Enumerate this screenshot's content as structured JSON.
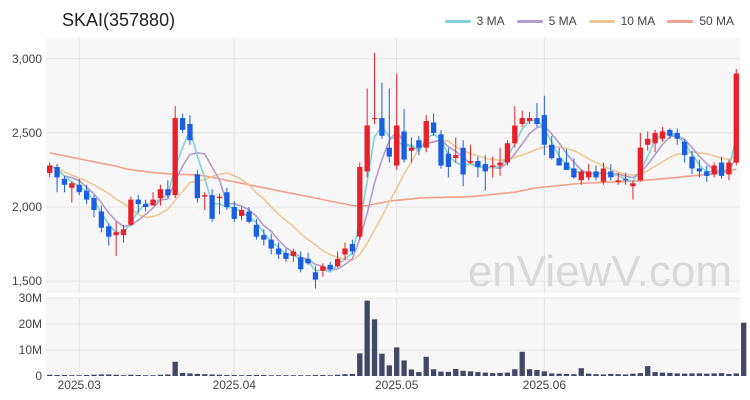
{
  "title": "SKAI(357880)",
  "watermark": "enViewV.com",
  "colors": {
    "up": "#e8202a",
    "down": "#1a5fe0",
    "ma3": "#7fd3d8",
    "ma5": "#b39ccc",
    "ma10": "#f0c694",
    "ma50": "#f2a08e",
    "volume": "#434766",
    "grid": "#e4e4e4",
    "plot_bg": "#f7f7f7"
  },
  "legend": [
    {
      "label": "3 MA",
      "color": "#7fd3d8"
    },
    {
      "label": "5 MA",
      "color": "#b39ccc"
    },
    {
      "label": "10 MA",
      "color": "#f0c694"
    },
    {
      "label": "50 MA",
      "color": "#f2a08e"
    }
  ],
  "chart_data": {
    "type": "candlestick",
    "price_axis": {
      "ylim": [
        1420,
        3140
      ],
      "ticks": [
        1500,
        2000,
        2500,
        3000
      ],
      "tick_labels": [
        "1,500",
        "2,000",
        "2,500",
        "3,000"
      ]
    },
    "volume_axis": {
      "ylim": [
        0,
        30000000
      ],
      "ticks": [
        0,
        10000000,
        20000000,
        30000000
      ],
      "tick_labels": [
        "0",
        "10M",
        "20M",
        "30M"
      ]
    },
    "x_ticks": [
      {
        "index": 4,
        "label": "2025.03"
      },
      {
        "index": 25,
        "label": "2025.04"
      },
      {
        "index": 47,
        "label": "2025.05"
      },
      {
        "index": 67,
        "label": "2025.06"
      }
    ],
    "ohlc": [
      [
        2230,
        2300,
        2200,
        2280
      ],
      [
        2270,
        2290,
        2100,
        2200
      ],
      [
        2190,
        2210,
        2100,
        2150
      ],
      [
        2130,
        2170,
        2030,
        2160
      ],
      [
        2150,
        2190,
        2080,
        2100
      ],
      [
        2110,
        2150,
        2020,
        2050
      ],
      [
        2060,
        2080,
        1930,
        1980
      ],
      [
        1970,
        2010,
        1830,
        1860
      ],
      [
        1870,
        1890,
        1740,
        1800
      ],
      [
        1810,
        1900,
        1670,
        1830
      ],
      [
        1810,
        1880,
        1760,
        1850
      ],
      [
        1880,
        2070,
        1870,
        2050
      ],
      [
        2050,
        2080,
        1960,
        2020
      ],
      [
        2020,
        2050,
        1970,
        2000
      ],
      [
        2010,
        2100,
        2010,
        2050
      ],
      [
        2060,
        2150,
        2010,
        2120
      ],
      [
        2120,
        2180,
        2060,
        2080
      ],
      [
        2080,
        2680,
        2060,
        2600
      ],
      [
        2600,
        2630,
        2500,
        2520
      ],
      [
        2560,
        2620,
        2420,
        2450
      ],
      [
        2220,
        2250,
        2030,
        2060
      ],
      [
        2070,
        2100,
        1980,
        2080
      ],
      [
        2080,
        2120,
        1900,
        1920
      ],
      [
        2060,
        2090,
        1950,
        2070
      ],
      [
        2100,
        2130,
        1980,
        2000
      ],
      [
        2000,
        2040,
        1900,
        1920
      ],
      [
        1940,
        2000,
        1910,
        1980
      ],
      [
        1970,
        2000,
        1890,
        1900
      ],
      [
        1880,
        1920,
        1780,
        1800
      ],
      [
        1810,
        1850,
        1740,
        1780
      ],
      [
        1780,
        1820,
        1680,
        1720
      ],
      [
        1720,
        1760,
        1650,
        1680
      ],
      [
        1690,
        1720,
        1630,
        1650
      ],
      [
        1670,
        1720,
        1630,
        1700
      ],
      [
        1660,
        1700,
        1560,
        1580
      ],
      [
        1650,
        1690,
        1610,
        1620
      ],
      [
        1560,
        1600,
        1450,
        1510
      ],
      [
        1570,
        1620,
        1530,
        1600
      ],
      [
        1610,
        1630,
        1570,
        1580
      ],
      [
        1600,
        1700,
        1590,
        1650
      ],
      [
        1680,
        1760,
        1640,
        1720
      ],
      [
        1750,
        1780,
        1680,
        1700
      ],
      [
        1800,
        2300,
        1780,
        2270
      ],
      [
        2240,
        2800,
        2200,
        2550
      ],
      [
        2600,
        3040,
        2560,
        2600
      ],
      [
        2600,
        2840,
        2460,
        2480
      ],
      [
        2400,
        2800,
        2300,
        2340
      ],
      [
        2280,
        2900,
        2250,
        2550
      ],
      [
        2510,
        2660,
        2300,
        2320
      ],
      [
        2380,
        2470,
        2300,
        2400
      ],
      [
        2450,
        2480,
        2350,
        2400
      ],
      [
        2400,
        2620,
        2370,
        2580
      ],
      [
        2570,
        2630,
        2480,
        2500
      ],
      [
        2490,
        2520,
        2260,
        2280
      ],
      [
        2360,
        2400,
        2200,
        2270
      ],
      [
        2330,
        2470,
        2300,
        2350
      ],
      [
        2400,
        2450,
        2140,
        2220
      ],
      [
        2300,
        2420,
        2290,
        2310
      ],
      [
        2310,
        2340,
        2200,
        2270
      ],
      [
        2290,
        2350,
        2110,
        2240
      ],
      [
        2270,
        2340,
        2200,
        2280
      ],
      [
        2280,
        2400,
        2210,
        2300
      ],
      [
        2300,
        2450,
        2280,
        2430
      ],
      [
        2430,
        2680,
        2400,
        2550
      ],
      [
        2560,
        2650,
        2540,
        2600
      ],
      [
        2580,
        2640,
        2560,
        2600
      ],
      [
        2600,
        2700,
        2540,
        2560
      ],
      [
        2620,
        2750,
        2350,
        2420
      ],
      [
        2420,
        2480,
        2320,
        2330
      ],
      [
        2330,
        2400,
        2280,
        2280
      ],
      [
        2300,
        2390,
        2250,
        2250
      ],
      [
        2260,
        2330,
        2190,
        2200
      ],
      [
        2180,
        2250,
        2150,
        2240
      ],
      [
        2200,
        2290,
        2180,
        2240
      ],
      [
        2240,
        2280,
        2180,
        2200
      ],
      [
        2170,
        2300,
        2150,
        2260
      ],
      [
        2240,
        2290,
        2180,
        2200
      ],
      [
        2170,
        2230,
        2150,
        2180
      ],
      [
        2190,
        2230,
        2150,
        2180
      ],
      [
        2140,
        2180,
        2050,
        2160
      ],
      [
        2180,
        2500,
        2170,
        2400
      ],
      [
        2420,
        2510,
        2380,
        2460
      ],
      [
        2430,
        2520,
        2370,
        2500
      ],
      [
        2460,
        2540,
        2440,
        2510
      ],
      [
        2520,
        2530,
        2460,
        2480
      ],
      [
        2500,
        2530,
        2420,
        2460
      ],
      [
        2440,
        2460,
        2300,
        2350
      ],
      [
        2340,
        2380,
        2220,
        2260
      ],
      [
        2260,
        2320,
        2200,
        2240
      ],
      [
        2240,
        2280,
        2170,
        2210
      ],
      [
        2220,
        2300,
        2200,
        2280
      ],
      [
        2300,
        2340,
        2190,
        2210
      ],
      [
        2220,
        2320,
        2180,
        2300
      ],
      [
        2300,
        2930,
        2280,
        2900
      ]
    ],
    "volume": [
      500000,
      400000,
      400000,
      300000,
      300000,
      400000,
      500000,
      600000,
      600000,
      500000,
      300000,
      500000,
      400000,
      300000,
      300000,
      500000,
      600000,
      5500000,
      1200000,
      1000000,
      800000,
      700000,
      600000,
      500000,
      400000,
      400000,
      300000,
      400000,
      400000,
      400000,
      300000,
      300000,
      300000,
      300000,
      300000,
      300000,
      400000,
      400000,
      300000,
      500000,
      700000,
      800000,
      8700000,
      29000000,
      21800000,
      8600000,
      4100000,
      11000000,
      6000000,
      2500000,
      1500000,
      7400000,
      2600000,
      1700000,
      1600000,
      2700000,
      2000000,
      1800000,
      1500000,
      1300000,
      1100000,
      1200000,
      1300000,
      2600000,
      9300000,
      2600000,
      2300000,
      1800000,
      1000000,
      900000,
      800000,
      700000,
      3000000,
      900000,
      700000,
      600000,
      800000,
      700000,
      600000,
      900000,
      1100000,
      3800000,
      1500000,
      1300000,
      1200000,
      1000000,
      900000,
      1000000,
      1000000,
      900000,
      1000000,
      1100000,
      800000,
      1000000,
      20500000
    ],
    "ma3": [
      2280,
      2250,
      2210,
      2170,
      2140,
      2103,
      2043,
      1963,
      1880,
      1830,
      1827,
      1893,
      1973,
      2023,
      2023,
      2057,
      2083,
      2267,
      2400,
      2523,
      2343,
      2197,
      2020,
      2023,
      1997,
      1997,
      1967,
      1933,
      1893,
      1827,
      1767,
      1727,
      1683,
      1677,
      1643,
      1633,
      1570,
      1577,
      1563,
      1610,
      1650,
      1690,
      1897,
      2173,
      2473,
      2543,
      2473,
      2457,
      2403,
      2423,
      2373,
      2460,
      2493,
      2453,
      2350,
      2300,
      2280,
      2293,
      2267,
      2273,
      2263,
      2273,
      2337,
      2427,
      2527,
      2583,
      2587,
      2527,
      2437,
      2343,
      2287,
      2243,
      2230,
      2227,
      2227,
      2233,
      2220,
      2213,
      2187,
      2173,
      2247,
      2340,
      2453,
      2490,
      2497,
      2483,
      2430,
      2357,
      2283,
      2237,
      2243,
      2233,
      2263,
      2470
    ],
    "ma5": [
      2280,
      2250,
      2210,
      2198,
      2178,
      2132,
      2088,
      2030,
      1958,
      1908,
      1868,
      1876,
      1911,
      1951,
      1995,
      2048,
      2054,
      2174,
      2276,
      2354,
      2366,
      2358,
      2270,
      2182,
      2024,
      2022,
      2006,
      1980,
      1938,
      1874,
      1836,
      1776,
      1726,
      1694,
      1662,
      1646,
      1612,
      1600,
      1572,
      1582,
      1612,
      1650,
      1784,
      1958,
      2162,
      2320,
      2446,
      2512,
      2436,
      2404,
      2394,
      2426,
      2440,
      2452,
      2406,
      2376,
      2334,
      2294,
      2274,
      2264,
      2268,
      2260,
      2300,
      2358,
      2426,
      2496,
      2536,
      2546,
      2494,
      2432,
      2360,
      2302,
      2250,
      2226,
      2224,
      2228,
      2224,
      2222,
      2208,
      2198,
      2234,
      2286,
      2354,
      2422,
      2474,
      2482,
      2454,
      2402,
      2342,
      2292,
      2252,
      2234,
      2244,
      2336
    ],
    "ma10": [
      2280,
      2260,
      2235,
      2215,
      2195,
      2175,
      2150,
      2120,
      2090,
      2055,
      2025,
      1985,
      1950,
      1930,
      1935,
      1955,
      1985,
      2045,
      2105,
      2165,
      2175,
      2185,
      2205,
      2220,
      2230,
      2210,
      2185,
      2150,
      2095,
      2055,
      2000,
      1950,
      1910,
      1870,
      1820,
      1780,
      1745,
      1705,
      1680,
      1660,
      1650,
      1640,
      1680,
      1755,
      1845,
      1935,
      2035,
      2125,
      2225,
      2305,
      2395,
      2430,
      2440,
      2445,
      2445,
      2405,
      2380,
      2360,
      2345,
      2330,
      2320,
      2315,
      2320,
      2335,
      2350,
      2370,
      2390,
      2405,
      2410,
      2405,
      2395,
      2380,
      2355,
      2325,
      2300,
      2275,
      2255,
      2235,
      2220,
      2215,
      2225,
      2245,
      2275,
      2305,
      2335,
      2355,
      2365,
      2370,
      2365,
      2360,
      2345,
      2330,
      2320,
      2340
    ],
    "ma50": [
      2365,
      2355,
      2345,
      2335,
      2325,
      2315,
      2305,
      2295,
      2285,
      2275,
      2262,
      2252,
      2245,
      2238,
      2232,
      2228,
      2224,
      2222,
      2220,
      2218,
      2215,
      2210,
      2200,
      2190,
      2180,
      2170,
      2160,
      2150,
      2140,
      2130,
      2120,
      2110,
      2100,
      2090,
      2080,
      2070,
      2060,
      2050,
      2040,
      2030,
      2020,
      2010,
      2005,
      2010,
      2020,
      2030,
      2040,
      2045,
      2050,
      2055,
      2060,
      2062,
      2064,
      2065,
      2066,
      2067,
      2068,
      2070,
      2075,
      2080,
      2085,
      2090,
      2095,
      2100,
      2110,
      2120,
      2130,
      2135,
      2140,
      2145,
      2150,
      2155,
      2160,
      2162,
      2164,
      2166,
      2168,
      2170,
      2172,
      2175,
      2178,
      2182,
      2186,
      2190,
      2195,
      2200,
      2205,
      2210,
      2215,
      2220,
      2225,
      2230,
      2240,
      2255
    ]
  }
}
